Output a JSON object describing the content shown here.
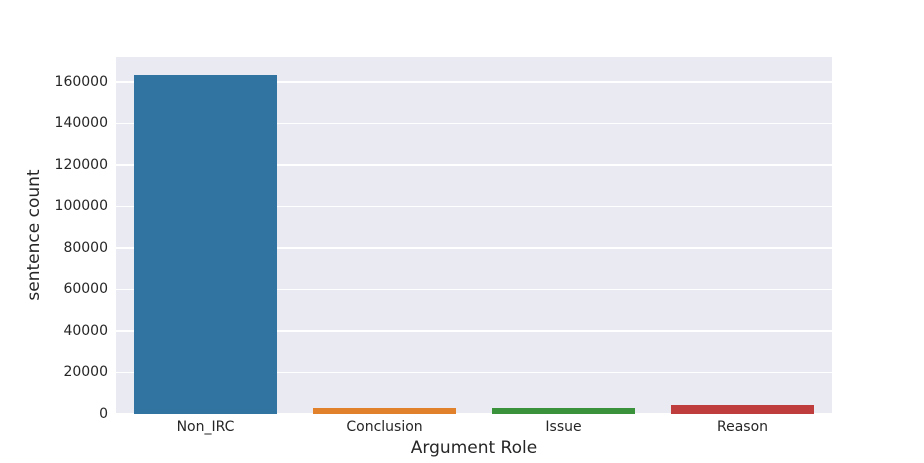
{
  "chart_data": {
    "type": "bar",
    "title": "",
    "xlabel": "Argument Role",
    "ylabel": "sentence count",
    "categories": [
      "Non_IRC",
      "Conclusion",
      "Issue",
      "Reason"
    ],
    "values": [
      163500,
      2900,
      3000,
      4200
    ],
    "bar_colors": [
      "#3274a1",
      "#e1812c",
      "#3a923a",
      "#c03d3e"
    ],
    "ylim": [
      0,
      172000
    ],
    "yticks": [
      0,
      20000,
      40000,
      60000,
      80000,
      100000,
      120000,
      140000,
      160000
    ],
    "ytick_labels": [
      "0",
      "20000",
      "40000",
      "60000",
      "80000",
      "100000",
      "120000",
      "140000",
      "160000"
    ],
    "grid": true,
    "legend": "none",
    "plot_background": "#eaeaf2",
    "gridline_color": "#ffffff",
    "figure_background": "#ffffff",
    "text_color": "#262626"
  }
}
